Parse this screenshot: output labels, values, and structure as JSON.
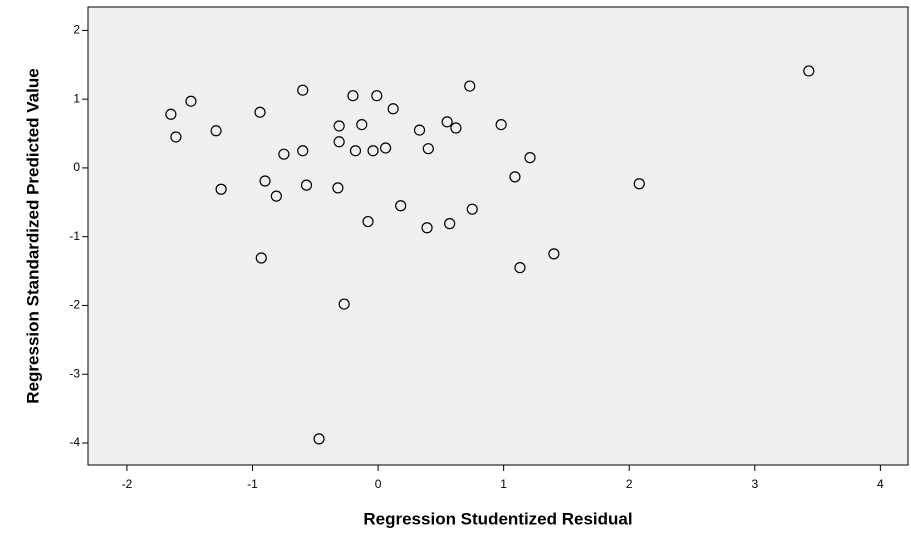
{
  "chart_data": {
    "type": "scatter",
    "x_label": "Regression Studentized Residual",
    "y_label": "Regression Standardized Predicted Value",
    "x": [
      -1.65,
      -1.61,
      -1.49,
      -1.29,
      -1.25,
      -0.94,
      -0.93,
      -0.9,
      -0.81,
      -0.75,
      -0.6,
      -0.6,
      -0.57,
      -0.31,
      -0.31,
      -0.32,
      -0.27,
      -0.47,
      -0.2,
      -0.18,
      -0.13,
      -0.08,
      -0.04,
      -0.01,
      0.06,
      0.12,
      0.18,
      0.33,
      0.39,
      0.4,
      0.55,
      0.57,
      0.62,
      0.73,
      0.75,
      0.98,
      1.09,
      1.13,
      1.21,
      1.4,
      2.08,
      3.43
    ],
    "values": [
      0.78,
      0.45,
      0.97,
      0.54,
      -0.31,
      0.81,
      -1.31,
      -0.19,
      -0.41,
      0.2,
      1.13,
      0.25,
      -0.25,
      0.61,
      0.38,
      -0.29,
      -1.98,
      -3.94,
      1.05,
      0.25,
      0.63,
      -0.78,
      0.25,
      1.05,
      0.29,
      0.86,
      -0.55,
      0.55,
      -0.87,
      0.28,
      0.67,
      -0.81,
      0.58,
      1.19,
      -0.6,
      0.63,
      -0.13,
      -1.45,
      0.15,
      -1.25,
      -0.23,
      1.41
    ],
    "color": "#000000",
    "xlim": [
      -2.31,
      4.22
    ],
    "ylim": [
      -4.32,
      2.34
    ],
    "xticks": [
      -2,
      -1,
      0,
      1,
      2,
      3,
      4
    ],
    "yticks": [
      -4,
      -3,
      -2,
      -1,
      0,
      1,
      2
    ],
    "grid": false
  }
}
